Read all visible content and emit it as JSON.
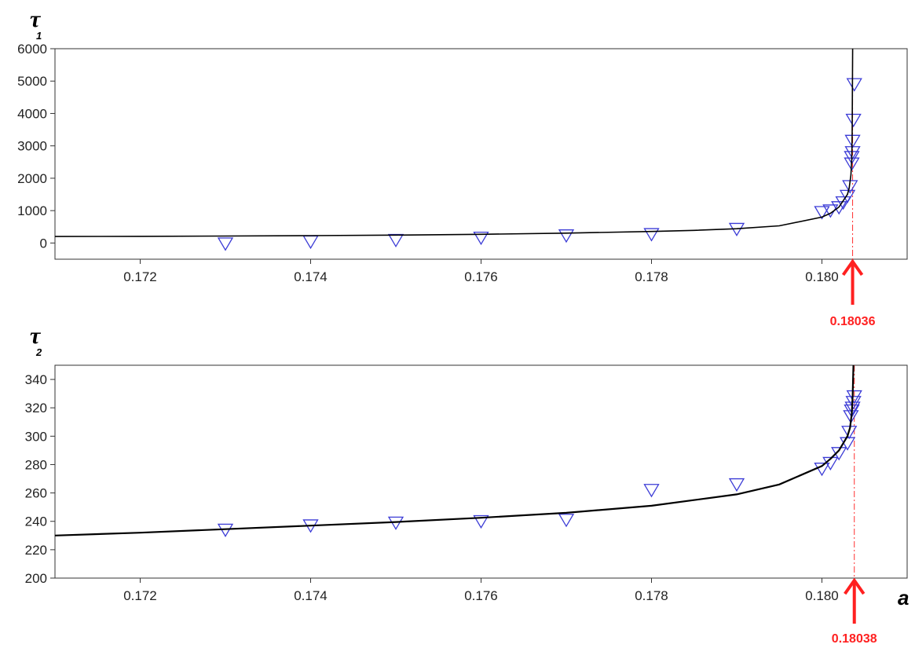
{
  "chart_data": [
    {
      "type": "scatter",
      "ylabel": "τ",
      "ylabel_subscript": "1",
      "xlabel": "",
      "xlim": [
        0.171,
        0.181
      ],
      "ylim": [
        -500,
        6000
      ],
      "xticks": [
        "0.172",
        "0.174",
        "0.176",
        "0.178",
        "0.180"
      ],
      "yticks": [
        "0",
        "1000",
        "2000",
        "3000",
        "4000",
        "5000",
        "6000"
      ],
      "grid": false,
      "critical_value": 0.18036,
      "critical_label": "0.18036",
      "series": [
        {
          "marker": "triangle-down-open",
          "color": "#3b3bd6",
          "x": [
            0.173,
            0.174,
            0.175,
            0.176,
            0.177,
            0.178,
            0.179,
            0.18,
            0.1801,
            0.1802,
            0.18025,
            0.1803,
            0.18033,
            0.18035,
            0.18035,
            0.18036,
            0.18036,
            0.18037,
            0.18038
          ],
          "y": [
            -20,
            40,
            90,
            160,
            230,
            270,
            430,
            950,
            1000,
            1100,
            1250,
            1450,
            1750,
            2450,
            2650,
            2800,
            3150,
            3800,
            4900
          ]
        },
        {
          "type": "line",
          "color": "#000000",
          "x": [
            0.171,
            0.172,
            0.173,
            0.174,
            0.175,
            0.176,
            0.177,
            0.178,
            0.1785,
            0.179,
            0.1795,
            0.18,
            0.1801,
            0.1802,
            0.1803,
            0.18032,
            0.18034,
            0.18035,
            0.180355,
            0.18036
          ],
          "y": [
            200,
            205,
            215,
            228,
            245,
            270,
            305,
            355,
            390,
            440,
            530,
            800,
            920,
            1110,
            1500,
            1700,
            2100,
            2600,
            3400,
            6000
          ]
        }
      ]
    },
    {
      "type": "scatter",
      "ylabel": "τ",
      "ylabel_subscript": "2",
      "xlabel": "a",
      "xlim": [
        0.171,
        0.181
      ],
      "ylim": [
        200,
        350
      ],
      "xticks": [
        "0.172",
        "0.174",
        "0.176",
        "0.178",
        "0.180"
      ],
      "yticks": [
        "200",
        "220",
        "240",
        "260",
        "280",
        "300",
        "320",
        "340"
      ],
      "grid": false,
      "critical_value": 0.18038,
      "critical_label": "0.18038",
      "series": [
        {
          "marker": "triangle-down-open",
          "color": "#3b3bd6",
          "x": [
            0.173,
            0.174,
            0.175,
            0.176,
            0.177,
            0.178,
            0.179,
            0.18,
            0.1801,
            0.1802,
            0.1803,
            0.18032,
            0.18034,
            0.18035,
            0.18036,
            0.18037,
            0.18038
          ],
          "y": [
            234,
            237,
            239,
            240,
            241,
            262,
            266,
            277,
            281,
            288,
            295,
            303,
            314,
            318,
            320,
            324,
            328
          ]
        },
        {
          "type": "line",
          "color": "#000000",
          "x": [
            0.171,
            0.172,
            0.173,
            0.174,
            0.175,
            0.176,
            0.177,
            0.178,
            0.179,
            0.1795,
            0.18,
            0.1801,
            0.1802,
            0.1803,
            0.18033,
            0.18035,
            0.18036,
            0.18037
          ],
          "y": [
            230,
            232,
            234.5,
            237,
            239.5,
            242.5,
            246,
            251,
            259,
            266,
            279,
            284,
            290,
            300,
            306,
            316,
            328,
            350
          ]
        }
      ]
    }
  ]
}
